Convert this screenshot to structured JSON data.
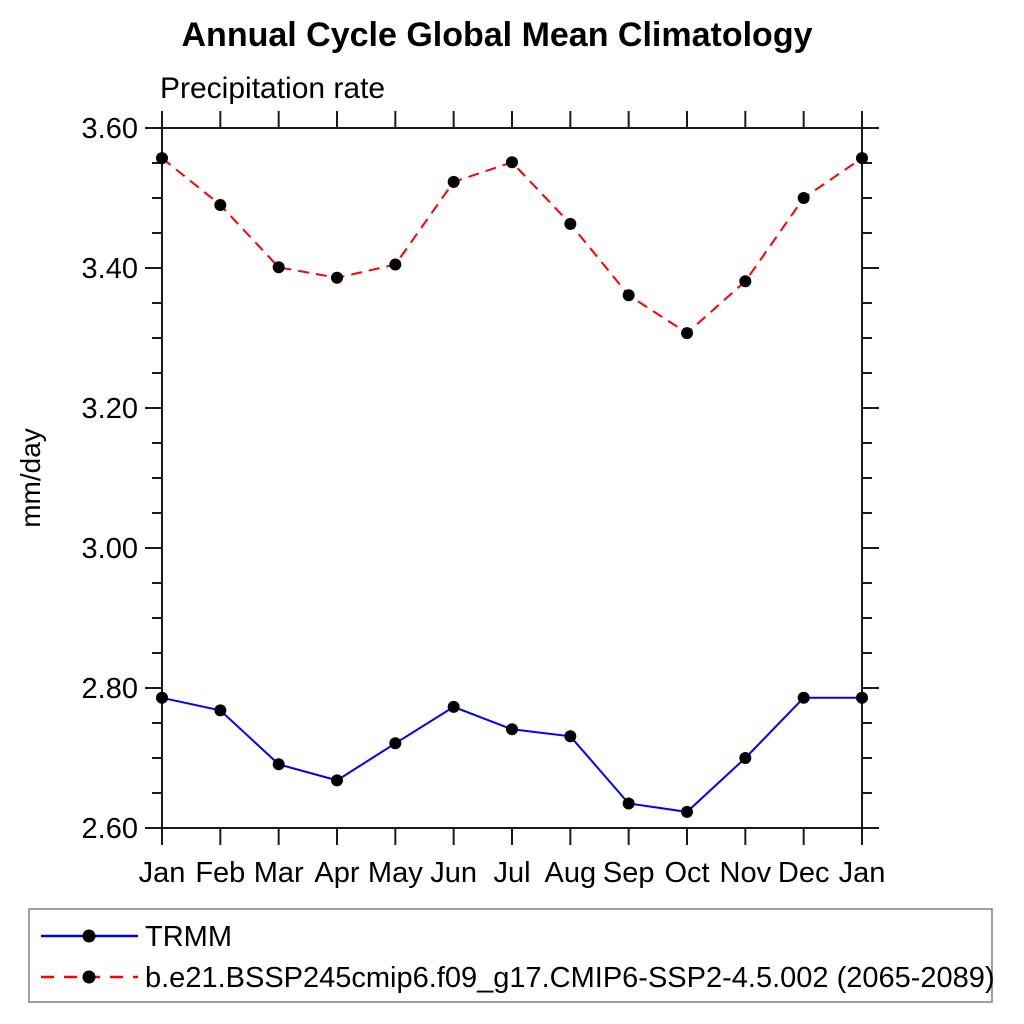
{
  "chart_data": {
    "type": "line",
    "title": "Annual Cycle Global Mean Climatology",
    "subtitle": "Precipitation rate",
    "xlabel": "",
    "ylabel": "mm/day",
    "x_tick_labels": [
      "Jan",
      "Feb",
      "Mar",
      "Apr",
      "May",
      "Jun",
      "Jul",
      "Aug",
      "Sep",
      "Oct",
      "Nov",
      "Dec",
      "Jan"
    ],
    "y_ticks": [
      2.6,
      2.8,
      3.0,
      3.2,
      3.4,
      3.6
    ],
    "y_tick_labels": [
      "2.60",
      "2.80",
      "3.00",
      "3.20",
      "3.40",
      "3.60"
    ],
    "y_minor_step": 0.05,
    "ylim": [
      2.6,
      3.6
    ],
    "grid": false,
    "legend_position": "bottom-left-box",
    "axis_color": "#1a1a1a",
    "marker_color": "#000000",
    "legend_border_color": "#808080",
    "series": [
      {
        "name": "TRMM",
        "color": "#0000ff",
        "line_style": "solid",
        "marker": "filled-circle",
        "values": [
          2.786,
          2.768,
          2.691,
          2.668,
          2.721,
          2.773,
          2.741,
          2.731,
          2.635,
          2.623,
          2.7,
          2.786,
          2.786
        ]
      },
      {
        "name": "b.e21.BSSP245cmip6.f09_g17.CMIP6-SSP2-4.5.002 (2065-2089)",
        "color": "#ff0000",
        "line_style": "dashed",
        "marker": "filled-circle",
        "values": [
          3.557,
          3.49,
          3.401,
          3.386,
          3.405,
          3.523,
          3.551,
          3.463,
          3.361,
          3.307,
          3.381,
          3.5,
          3.557
        ]
      }
    ]
  }
}
